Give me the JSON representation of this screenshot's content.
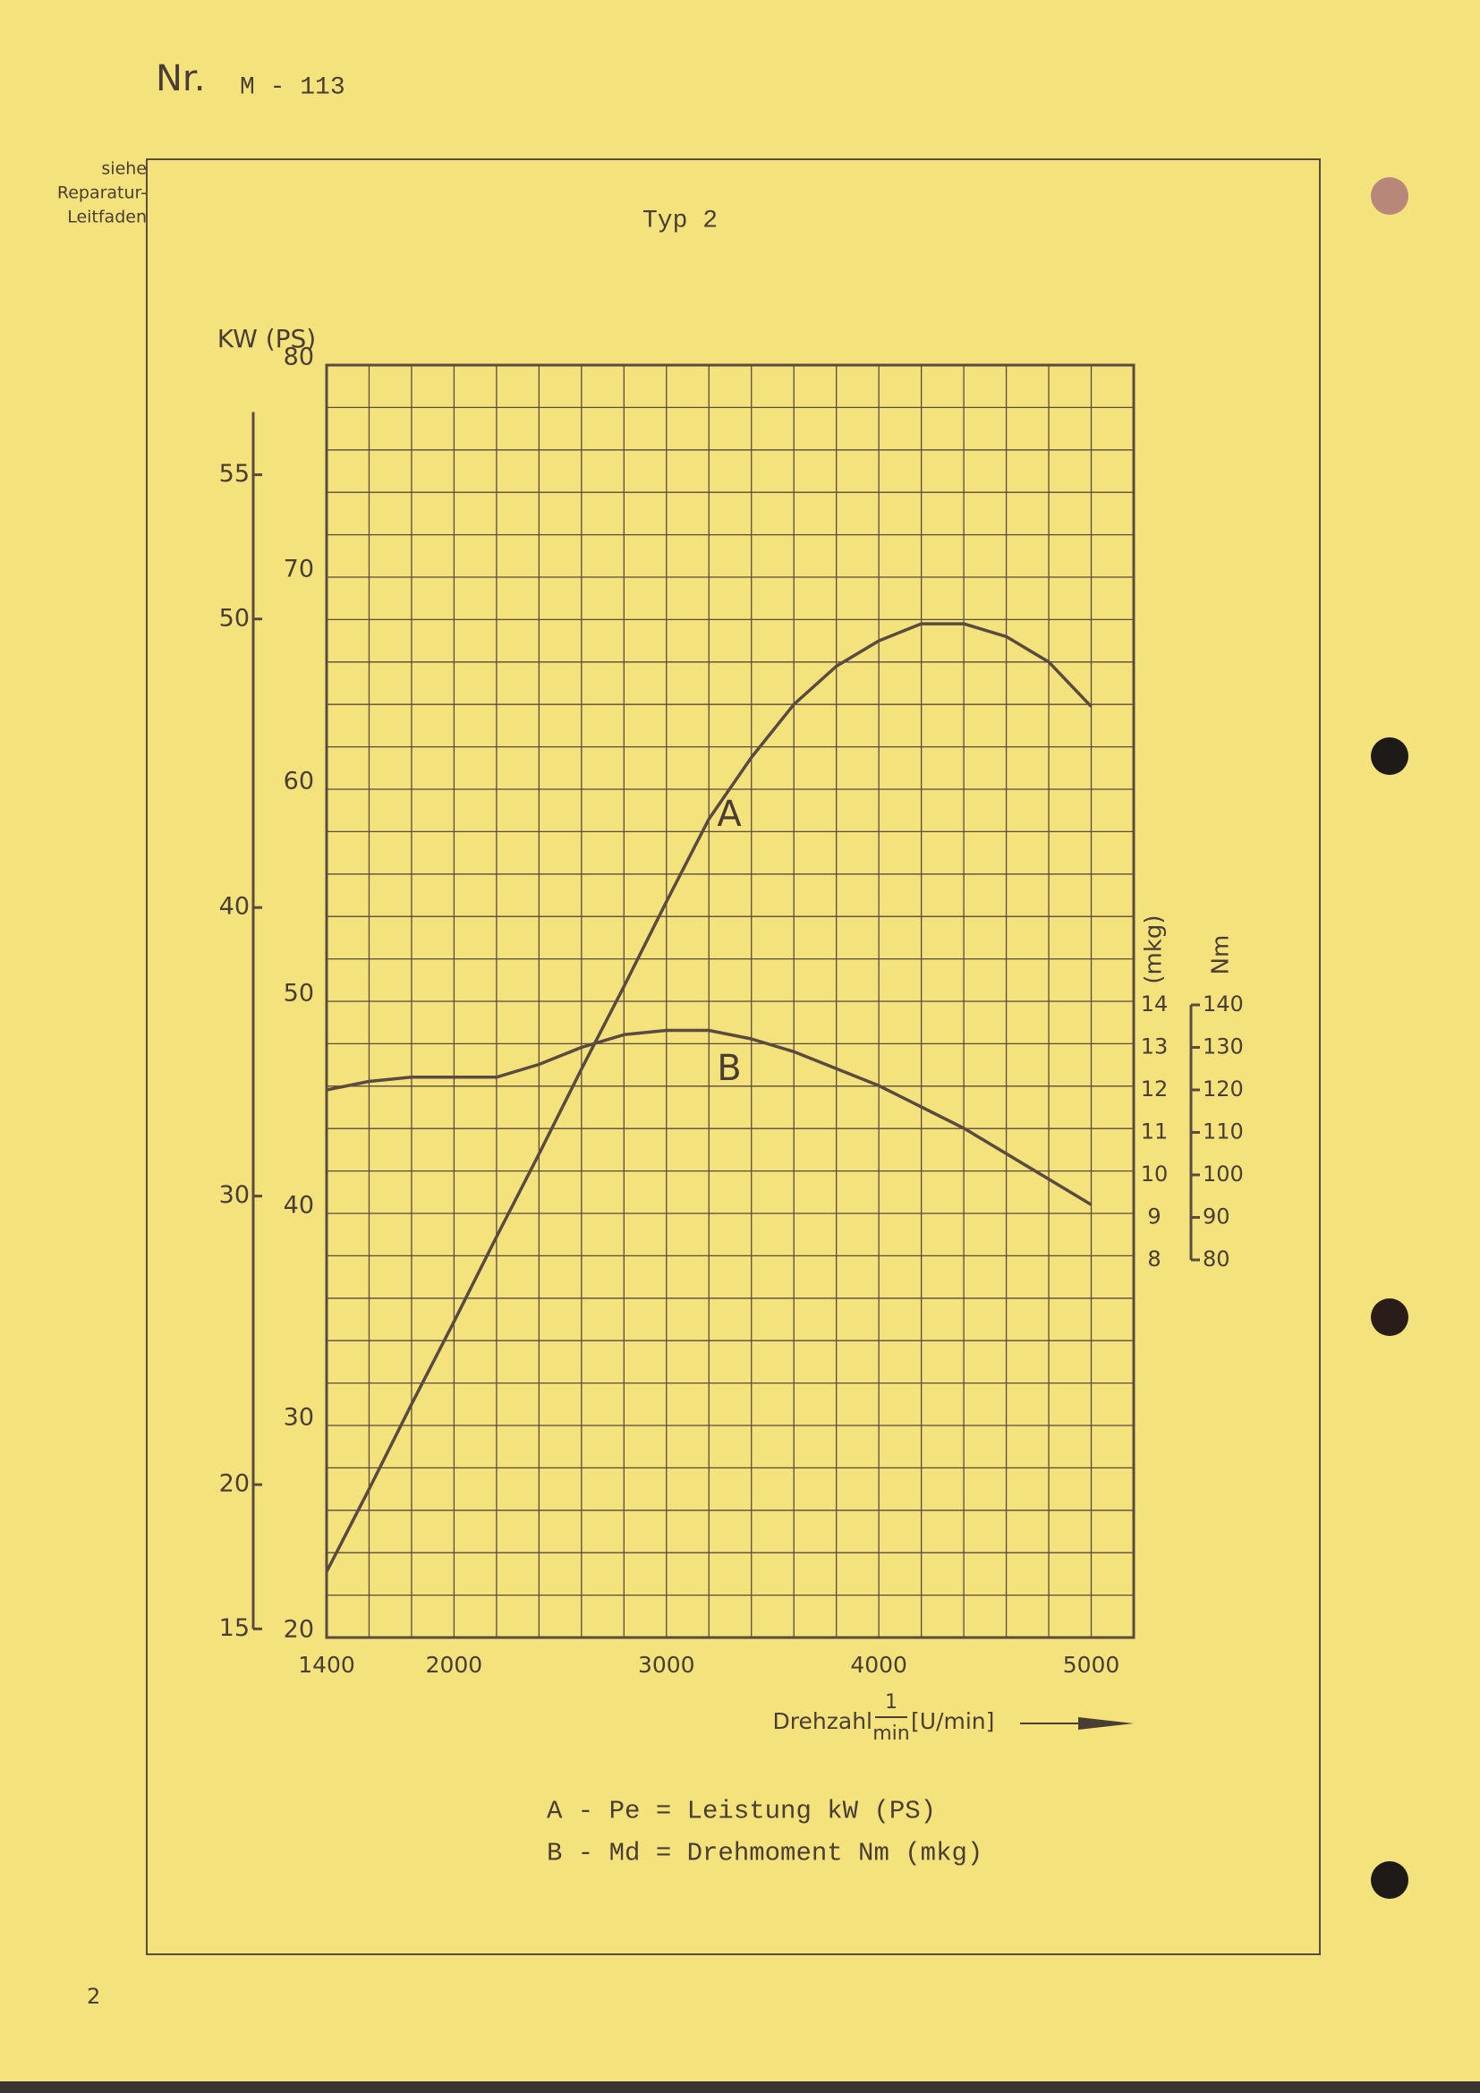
{
  "header": {
    "number_label": "Nr.",
    "number": "M - 113",
    "note": [
      "siehe",
      "Reparatur-",
      "Leitfaden"
    ]
  },
  "chart_data": {
    "type": "line",
    "title": "Typ 2",
    "y_label": "KW (PS)",
    "y2_label": "(mkg)",
    "y3_label": "Nm",
    "x_label": {
      "text": "Drehzahl",
      "numerator": "1",
      "denominator": "min",
      "unit": "[U/min]"
    },
    "x": [
      1400,
      1600,
      1800,
      2000,
      2200,
      2400,
      2600,
      2800,
      3000,
      3200,
      3400,
      3600,
      3800,
      4000,
      4200,
      4400,
      4600,
      4800,
      5000
    ],
    "xlim": [
      1400,
      5200
    ],
    "xticks": [
      1400,
      2000,
      3000,
      4000,
      5000
    ],
    "ylim": [
      20,
      80
    ],
    "yticks": [
      20,
      30,
      40,
      50,
      60,
      70,
      80
    ],
    "kw_lim": [
      14.7,
      58.8
    ],
    "kw_ticks": [
      15,
      20,
      30,
      40,
      50,
      55
    ],
    "y2lim": [
      8,
      14
    ],
    "y2ticks": [
      8,
      9,
      10,
      11,
      12,
      13,
      14
    ],
    "nm_lim": [
      80,
      140
    ],
    "nm_ticks": [
      80,
      90,
      100,
      110,
      120,
      130,
      140
    ],
    "grid": true,
    "series": [
      {
        "name": "A",
        "color": "#5a4a40",
        "values": [
          23.1,
          27.0,
          31.0,
          34.9,
          38.9,
          42.8,
          46.8,
          50.7,
          54.7,
          58.6,
          61.5,
          64.0,
          65.8,
          67.0,
          67.8,
          67.8,
          67.2,
          66.0,
          63.9
        ]
      },
      {
        "name": "B",
        "color": "#5a4a40",
        "axis": "y2",
        "values": [
          12.0,
          12.2,
          12.3,
          12.3,
          12.3,
          12.6,
          13.0,
          13.3,
          13.4,
          13.4,
          13.2,
          12.9,
          12.5,
          12.1,
          11.6,
          11.1,
          10.5,
          9.9,
          9.3
        ]
      }
    ]
  },
  "legend": [
    "A - Pe = Leistung kW (PS)",
    "B - Md = Drehmoment Nm (mkg)"
  ],
  "page_number": "2"
}
